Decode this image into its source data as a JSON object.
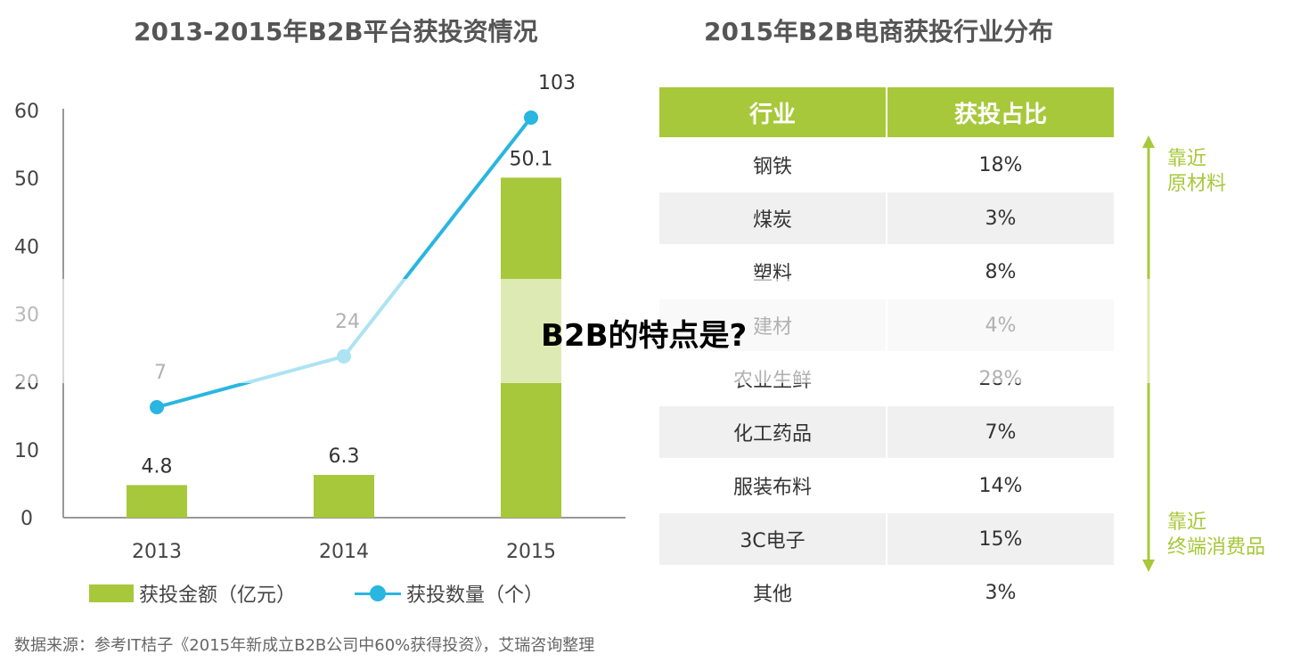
{
  "colors": {
    "bar": "#a7c83a",
    "line": "#29b6e0",
    "header": "#a7c83a",
    "arrow": "#a7c83a",
    "side_label": "#a7c83a"
  },
  "chart_data": [
    {
      "type": "bar",
      "title": "2013-2015年B2B平台获投资情况",
      "categories": [
        "2013",
        "2014",
        "2015"
      ],
      "ylim": [
        0,
        60
      ],
      "yticks": [
        "0",
        "10",
        "20",
        "30",
        "40",
        "50",
        "60"
      ],
      "series": [
        {
          "name": "获投金额（亿元）",
          "kind": "bar",
          "values": [
            4.8,
            6.3,
            50.1
          ],
          "labels": [
            "4.8",
            "6.3",
            "50.1"
          ]
        },
        {
          "name": "获投数量（个）",
          "kind": "line",
          "values": [
            7,
            24,
            103
          ],
          "labels": [
            "7",
            "24",
            "103"
          ]
        }
      ],
      "grid": false,
      "legend": "bottom"
    },
    {
      "type": "table",
      "title": "2015年B2B电商获投行业分布",
      "columns": [
        "行业",
        "获投占比"
      ],
      "rows": [
        [
          "钢铁",
          "18%"
        ],
        [
          "煤炭",
          "3%"
        ],
        [
          "塑料",
          "8%"
        ],
        [
          "建材",
          "4%"
        ],
        [
          "农业生鲜",
          "28%"
        ],
        [
          "化工药品",
          "7%"
        ],
        [
          "服装布料",
          "14%"
        ],
        [
          "3C电子",
          "15%"
        ],
        [
          "其他",
          "3%"
        ]
      ]
    }
  ],
  "side_labels": {
    "top": "靠近\n原材料",
    "bottom": "靠近\n终端消费品"
  },
  "source_text": "数据来源：参考IT桔子《2015年新成立B2B公司中60%获得投资》，艾瑞咨询整理",
  "overlay_text": "B2B的特点是?"
}
